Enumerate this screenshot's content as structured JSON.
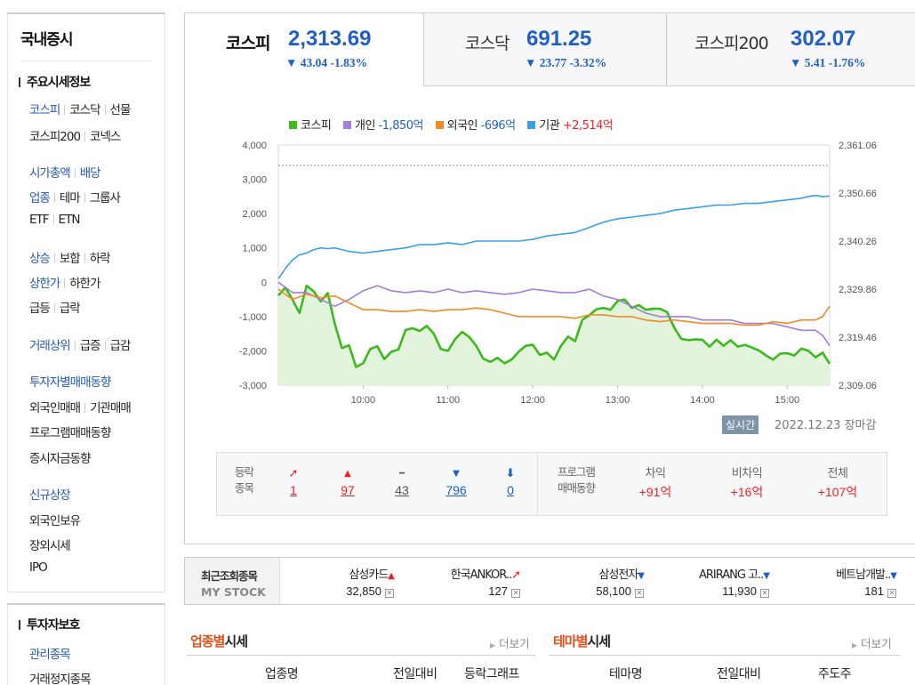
{
  "sidebar": {
    "title": "국내증시",
    "sections": [
      {
        "title": "주요시세정보"
      },
      {
        "title": "투자자보호"
      }
    ],
    "rows": {
      "r1": [
        "코스피",
        "코스닥",
        "선물"
      ],
      "r2": [
        "코스피200",
        "코넥스"
      ],
      "r3": [
        "시가총액",
        "배당"
      ],
      "r4": [
        "업종",
        "테마",
        "그룹사"
      ],
      "r5": [
        "ETF",
        "ETN"
      ],
      "r6": [
        "상승",
        "보합",
        "하락"
      ],
      "r7": [
        "상한가",
        "하한가"
      ],
      "r8": [
        "급등",
        "급락"
      ],
      "r9": [
        "거래상위",
        "급증",
        "급감"
      ],
      "r10": [
        "투자자별매매동향"
      ],
      "r11": [
        "외국인매매",
        "기관매매"
      ],
      "r12": [
        "프로그램매매동향"
      ],
      "r13": [
        "증시자금동향"
      ],
      "r14": [
        "신규상장"
      ],
      "r15": [
        "외국인보유"
      ],
      "r16": [
        "장외시세"
      ],
      "r17": [
        "IPO"
      ],
      "r18": [
        "관리종목"
      ],
      "r19": [
        "거래정지종목"
      ]
    }
  },
  "tabs": [
    {
      "name": "코스피",
      "value": "2,313.69",
      "change": "▼ 43.04 -1.83%"
    },
    {
      "name": "코스닥",
      "value": "691.25",
      "change": "▼ 23.77 -3.32%"
    },
    {
      "name": "코스피200",
      "value": "302.07",
      "change": "▼ 5.41 -1.76%"
    }
  ],
  "legend": [
    {
      "label": "코스피",
      "value": "",
      "color": "#3cba1c",
      "value_color": ""
    },
    {
      "label": "개인",
      "value": "-1,850억",
      "color": "#a27ed8",
      "value_color": "#1f5fc7"
    },
    {
      "label": "외국인",
      "value": "-696억",
      "color": "#ef8a24",
      "value_color": "#1f5fc7"
    },
    {
      "label": "기관",
      "value": "+2,514억",
      "color": "#3aa0e6",
      "value_color": "#e22"
    }
  ],
  "chart_data": {
    "type": "line",
    "x_ticks": [
      "10:00",
      "11:00",
      "12:00",
      "13:00",
      "14:00",
      "15:00"
    ],
    "y_left_ticks": [
      "4,000",
      "3,000",
      "2,000",
      "1,000",
      "0",
      "-1,000",
      "-2,000",
      "-3,000"
    ],
    "y_right_ticks": [
      "2,361.06",
      "2,350.66",
      "2,340.26",
      "2,329.86",
      "2,319.46",
      "2,309.06"
    ],
    "y_left_range": [
      -3000,
      4000
    ],
    "y_right_range": [
      2309.06,
      2361.06
    ],
    "x_range_minutes": [
      540,
      930
    ],
    "reference_line_left": 3400,
    "series": [
      {
        "name": "코스피",
        "color": "#3cba1c",
        "axis": "right",
        "fill": true,
        "x": [
          540,
          545,
          550,
          555,
          560,
          565,
          570,
          575,
          580,
          585,
          590,
          595,
          600,
          605,
          610,
          615,
          620,
          625,
          630,
          635,
          640,
          645,
          650,
          655,
          660,
          665,
          670,
          675,
          680,
          685,
          690,
          695,
          700,
          705,
          710,
          715,
          720,
          725,
          730,
          735,
          740,
          745,
          750,
          755,
          760,
          765,
          770,
          775,
          780,
          785,
          790,
          795,
          800,
          805,
          810,
          815,
          820,
          825,
          830,
          835,
          840,
          845,
          850,
          855,
          860,
          865,
          870,
          875,
          880,
          885,
          890,
          895,
          900,
          905,
          910,
          915,
          920,
          925,
          930
        ],
        "y": [
          2328.5,
          2330.2,
          2327.6,
          2324.7,
          2330.6,
          2329.4,
          2327.2,
          2329.0,
          2322.3,
          2317.1,
          2317.7,
          2313.0,
          2313.8,
          2316.9,
          2317.5,
          2314.7,
          2316.3,
          2316.8,
          2321.0,
          2321.4,
          2320.8,
          2321.9,
          2320.2,
          2316.9,
          2316.5,
          2319.0,
          2320.6,
          2319.5,
          2317.6,
          2314.8,
          2314.1,
          2315.0,
          2313.8,
          2314.6,
          2316.3,
          2317.6,
          2317.8,
          2315.6,
          2316.1,
          2314.6,
          2317.6,
          2319.6,
          2318.6,
          2323.2,
          2324.2,
          2325.5,
          2325.8,
          2325.4,
          2327.3,
          2327.6,
          2325.8,
          2326.4,
          2325.4,
          2325.6,
          2325.6,
          2324.9,
          2321.6,
          2319.1,
          2318.8,
          2319.0,
          2318.9,
          2317.4,
          2318.9,
          2317.6,
          2318.8,
          2317.4,
          2317.8,
          2317.2,
          2316.6,
          2315.5,
          2314.6,
          2315.9,
          2316.0,
          2315.5,
          2317.0,
          2316.5,
          2315.1,
          2316.1,
          2313.7
        ]
      },
      {
        "name": "개인",
        "color": "#a27ed8",
        "axis": "left",
        "x": [
          540,
          550,
          560,
          570,
          580,
          590,
          600,
          610,
          620,
          630,
          640,
          650,
          660,
          670,
          680,
          690,
          700,
          710,
          720,
          730,
          740,
          750,
          760,
          770,
          780,
          790,
          800,
          810,
          820,
          830,
          840,
          850,
          860,
          870,
          880,
          890,
          900,
          910,
          920,
          925,
          930
        ],
        "y": [
          0,
          -300,
          -300,
          -500,
          -700,
          -500,
          -250,
          -100,
          -250,
          -300,
          -250,
          -300,
          -200,
          -300,
          -250,
          -300,
          -350,
          -300,
          -200,
          -250,
          -300,
          -300,
          -200,
          -400,
          -500,
          -700,
          -900,
          -1000,
          -1000,
          -1000,
          -1100,
          -1100,
          -1100,
          -1200,
          -1200,
          -1200,
          -1300,
          -1400,
          -1400,
          -1550,
          -1850
        ]
      },
      {
        "name": "외국인",
        "color": "#ef8a24",
        "axis": "left",
        "x": [
          540,
          550,
          560,
          570,
          580,
          590,
          600,
          610,
          620,
          630,
          640,
          650,
          660,
          670,
          680,
          690,
          700,
          710,
          720,
          730,
          740,
          750,
          760,
          770,
          780,
          790,
          800,
          810,
          820,
          830,
          840,
          850,
          860,
          870,
          880,
          890,
          900,
          910,
          920,
          925,
          930
        ],
        "y": [
          -200,
          -500,
          -350,
          -450,
          -400,
          -600,
          -800,
          -800,
          -850,
          -850,
          -800,
          -850,
          -800,
          -800,
          -750,
          -800,
          -900,
          -1000,
          -1000,
          -1000,
          -1000,
          -1050,
          -950,
          -950,
          -1000,
          -1000,
          -1100,
          -1150,
          -1100,
          -1150,
          -1200,
          -1200,
          -1200,
          -1250,
          -1250,
          -1150,
          -1200,
          -1100,
          -1100,
          -1000,
          -696
        ]
      },
      {
        "name": "기관",
        "color": "#3aa0e6",
        "axis": "left",
        "x": [
          540,
          545,
          550,
          555,
          560,
          565,
          570,
          575,
          580,
          590,
          600,
          610,
          620,
          630,
          640,
          650,
          660,
          670,
          680,
          690,
          700,
          710,
          720,
          730,
          740,
          750,
          760,
          770,
          780,
          790,
          800,
          810,
          820,
          830,
          840,
          850,
          860,
          870,
          880,
          890,
          900,
          910,
          915,
          920,
          925,
          930
        ],
        "y": [
          100,
          400,
          650,
          800,
          850,
          950,
          1000,
          980,
          1000,
          900,
          850,
          900,
          950,
          1000,
          1100,
          1100,
          1150,
          1100,
          1200,
          1200,
          1200,
          1200,
          1250,
          1350,
          1400,
          1450,
          1600,
          1750,
          1850,
          1900,
          1950,
          2000,
          2100,
          2150,
          2200,
          2250,
          2250,
          2300,
          2300,
          2350,
          2400,
          2450,
          2500,
          2530,
          2500,
          2514
        ]
      }
    ]
  },
  "realtime_label": "실시간",
  "datestamp": "2022.12.23 장마감",
  "stats": {
    "label1": "등락",
    "label2": "종목",
    "items": [
      {
        "icon": "➚",
        "count": "1"
      },
      {
        "icon": "▲",
        "count": "97"
      },
      {
        "icon": "━",
        "count": "43"
      },
      {
        "icon": "▼",
        "count": "796"
      },
      {
        "icon": "⬇",
        "count": "0"
      }
    ],
    "prog_label1": "프로그램",
    "prog_label2": "매매동향",
    "prog": [
      {
        "label": "차익",
        "value": "+91억"
      },
      {
        "label": "비차익",
        "value": "+16억"
      },
      {
        "label": "전체",
        "value": "+107억"
      }
    ]
  },
  "mystock": {
    "label1": "최근조회종목",
    "label2": "MY STOCK",
    "items": [
      {
        "name": "삼성카드",
        "arrow": "▲",
        "arrow_color": "#e22",
        "price": "32,850"
      },
      {
        "name": "한국ANKOR..",
        "arrow": "➚",
        "arrow_color": "#e22",
        "price": "127"
      },
      {
        "name": "삼성전자",
        "arrow": "▼",
        "arrow_color": "#1f5fc7",
        "price": "58,100"
      },
      {
        "name": "ARIRANG 고..",
        "arrow": "▼",
        "arrow_color": "#1f5fc7",
        "price": "11,930"
      },
      {
        "name": "베트남개발..",
        "arrow": "▼",
        "arrow_color": "#1f5fc7",
        "price": "181"
      }
    ],
    "remove_glyph": "✕"
  },
  "sector": {
    "title_a": "업종별",
    "title_b": "시세",
    "more": "더보기",
    "cols": [
      "업종명",
      "전일대비",
      "등락그래프"
    ]
  },
  "theme": {
    "title_a": "테마별",
    "title_b": "시세",
    "more": "더보기",
    "cols": [
      "테마명",
      "전일대비",
      "주도주"
    ]
  }
}
